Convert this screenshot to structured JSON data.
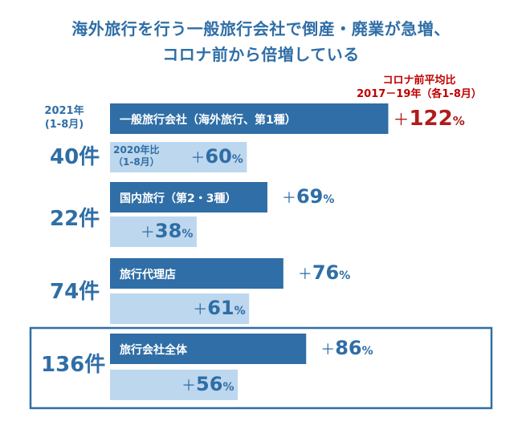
{
  "title": {
    "line1": "海外旅行を行う一般旅行会社で倒産・廃業が急増、",
    "line2": "コロナ前から倍増している"
  },
  "legend": {
    "line1": "コロナ前平均比",
    "line2": "2017－19年（各1-8月）"
  },
  "year_label": {
    "line1": "2021年",
    "line2": "(1-8月)"
  },
  "sub_label": {
    "line1": "2020年比",
    "line2": "（1-8月）"
  },
  "colors": {
    "dark_bar": "#2f6ea6",
    "light_bar": "#bdd7ee",
    "highlight": "#b01c1c",
    "frame": "#2f6ea6"
  },
  "chart_data": {
    "type": "bar",
    "unit": "%",
    "categories": [
      "一般旅行会社（海外旅行、第1種）",
      "国内旅行（第2・3種）",
      "旅行代理店",
      "旅行会社全体"
    ],
    "counts": [
      "40件",
      "22件",
      "74件",
      "136件"
    ],
    "series": [
      {
        "name": "コロナ前平均比",
        "values": [
          122,
          69,
          76,
          86
        ],
        "labels": [
          "122",
          "69",
          "76",
          "86"
        ]
      },
      {
        "name": "2020年比",
        "values": [
          60,
          38,
          61,
          56
        ],
        "labels": [
          "60",
          "38",
          "61",
          "56"
        ]
      }
    ],
    "plus_sign": "＋",
    "percent_sign": "%",
    "highlight_category_index": 3
  }
}
